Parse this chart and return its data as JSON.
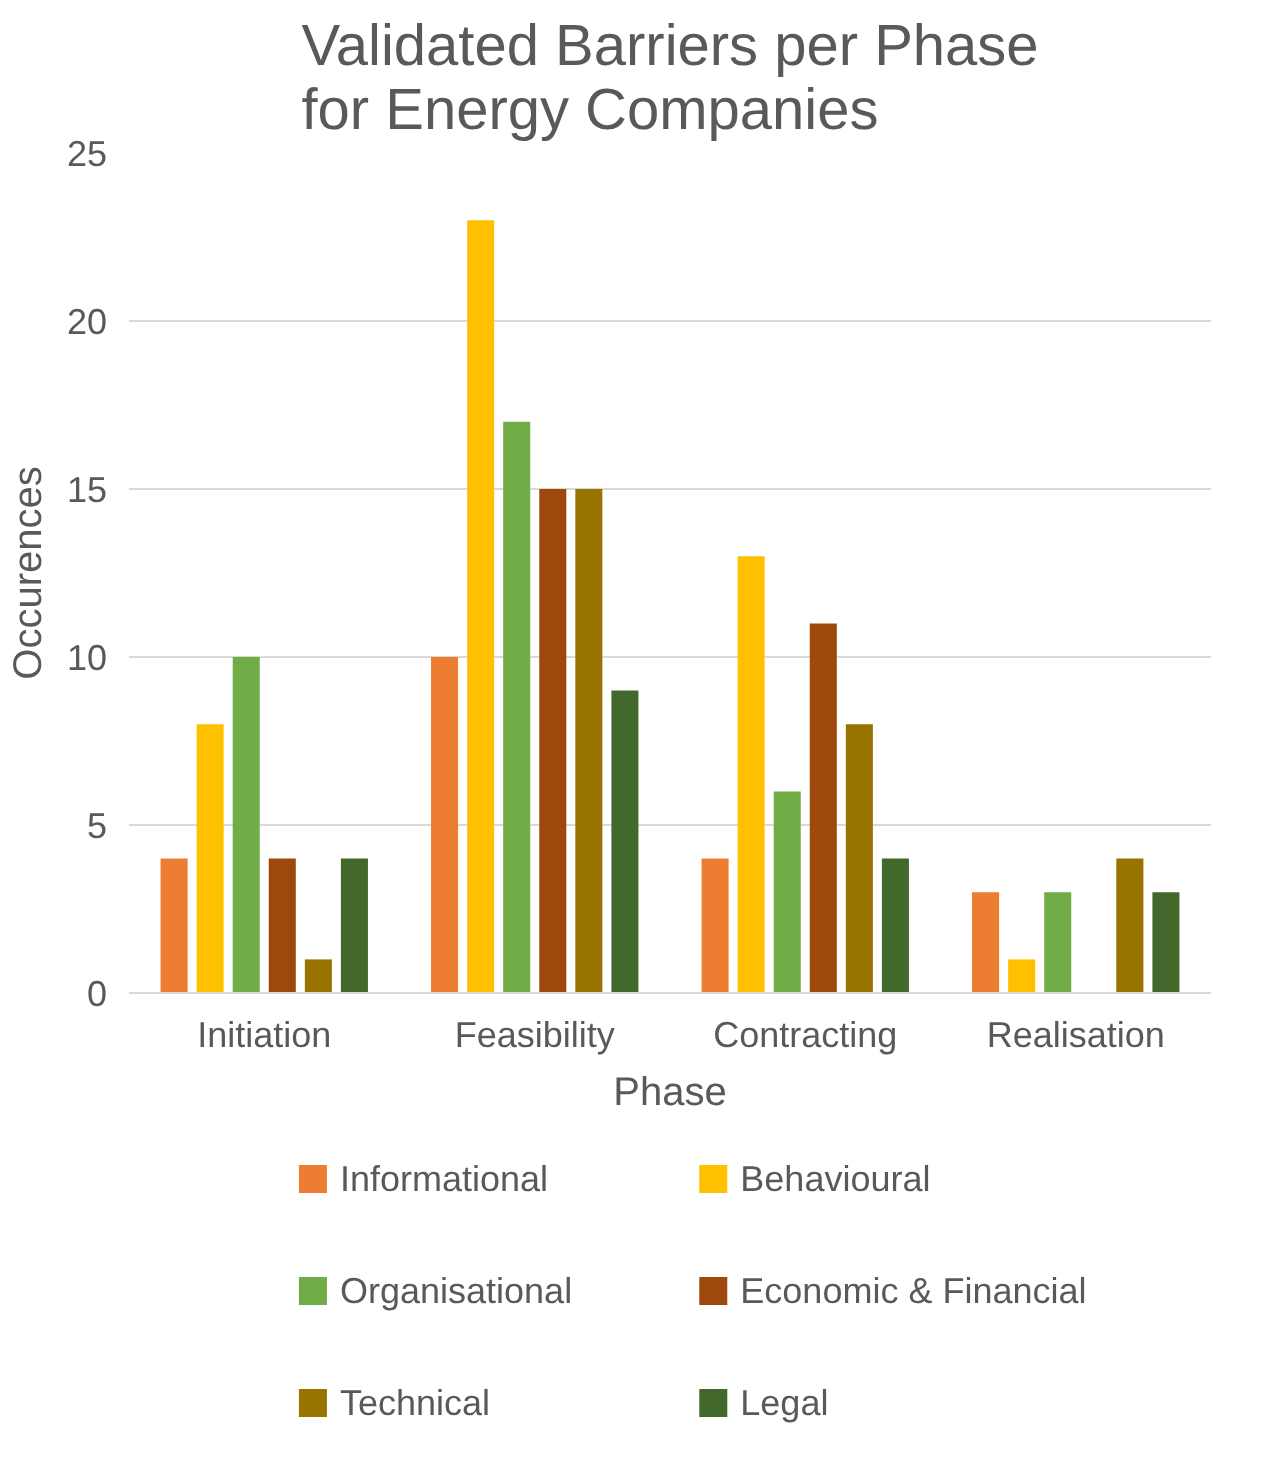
{
  "chart_data": {
    "type": "bar",
    "title": "Validated Barriers per Phase for Energy Companies",
    "xlabel": "Phase",
    "ylabel": "Occurences",
    "categories": [
      "Initiation",
      "Feasibility",
      "Contracting",
      "Realisation"
    ],
    "series": [
      {
        "name": "Informational",
        "color": "#ed7d31",
        "values": [
          4,
          10,
          4,
          3
        ]
      },
      {
        "name": "Behavioural",
        "color": "#ffc000",
        "values": [
          8,
          23,
          13,
          1
        ]
      },
      {
        "name": "Organisational",
        "color": "#70ad47",
        "values": [
          10,
          17,
          6,
          3
        ]
      },
      {
        "name": "Economic & Financial",
        "color": "#9e480e",
        "values": [
          4,
          15,
          11,
          0
        ]
      },
      {
        "name": "Technical",
        "color": "#997300",
        "values": [
          1,
          15,
          8,
          4
        ]
      },
      {
        "name": "Legal",
        "color": "#43682b",
        "values": [
          4,
          9,
          4,
          3
        ]
      }
    ],
    "ylim": [
      0,
      25
    ],
    "yticks": [
      0,
      5,
      10,
      15,
      20,
      25
    ],
    "grid": "y",
    "legend": "bottom"
  }
}
